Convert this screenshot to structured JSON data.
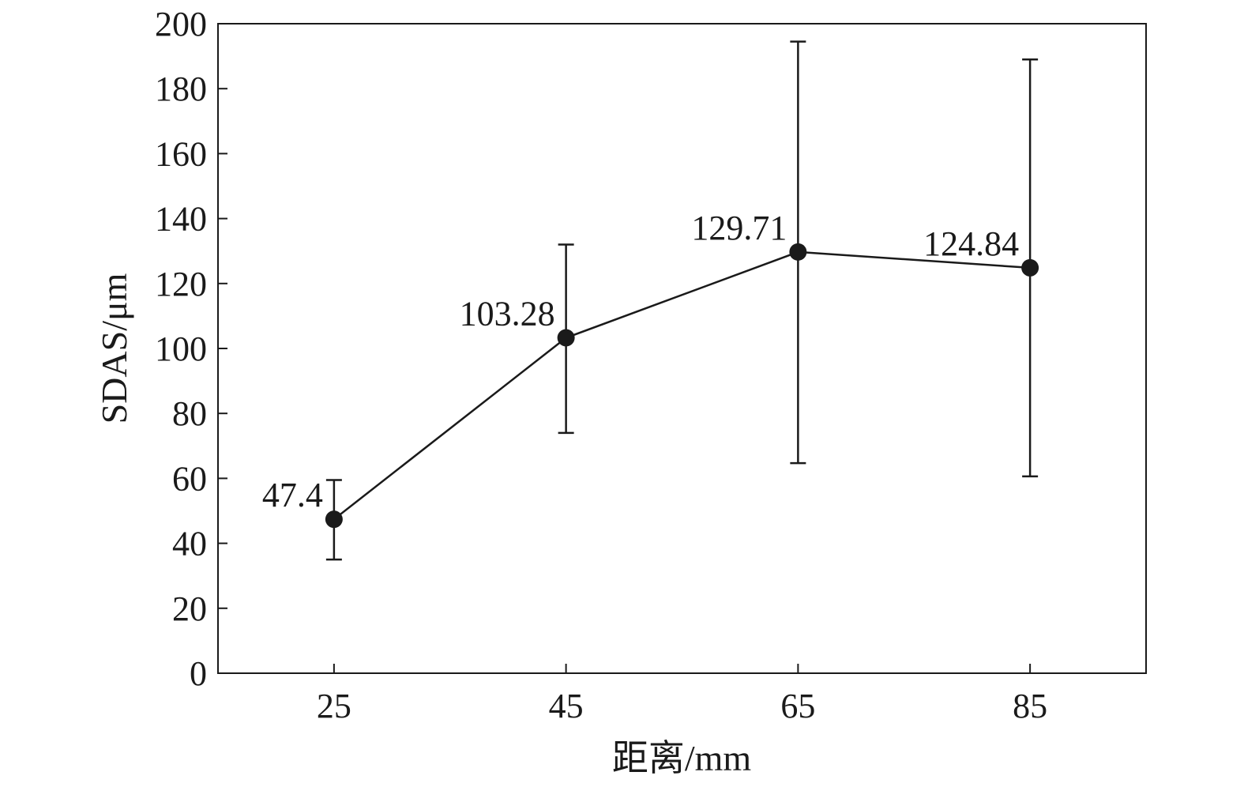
{
  "chart_data": {
    "type": "line",
    "title": "",
    "xlabel": "距离/mm",
    "ylabel": "SDAS/μm",
    "x": [
      25,
      45,
      65,
      85
    ],
    "xticks": [
      "25",
      "45",
      "65",
      "85"
    ],
    "xlim": [
      15,
      95
    ],
    "ylim": [
      0,
      200
    ],
    "yticks": [
      "0",
      "20",
      "40",
      "60",
      "80",
      "100",
      "120",
      "140",
      "160",
      "180",
      "200"
    ],
    "series": [
      {
        "values": [
          47.4,
          103.28,
          129.71,
          124.84
        ],
        "labels": [
          "47.4",
          "103.28",
          "129.71",
          "124.84"
        ],
        "error_low": [
          35,
          74,
          64.7,
          60.6
        ],
        "error_high": [
          59.5,
          132,
          194.5,
          189
        ]
      }
    ],
    "grid": false,
    "line_color": "#1a1a1a"
  }
}
